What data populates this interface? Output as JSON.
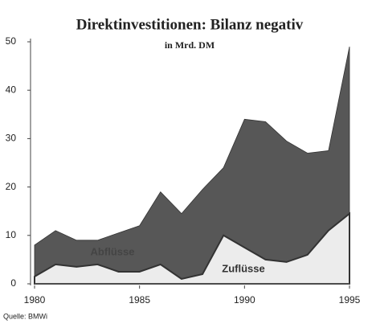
{
  "chart_data": {
    "type": "area",
    "title": "Direktinvestitionen: Bilanz negativ",
    "subtitle": "in Mrd. DM",
    "source": "Quelle: BMWi",
    "x": [
      1980,
      1981,
      1982,
      1983,
      1984,
      1985,
      1986,
      1987,
      1988,
      1989,
      1990,
      1991,
      1992,
      1993,
      1994,
      1995
    ],
    "series": [
      {
        "name": "Abflüsse",
        "color": "#575757",
        "values": [
          8,
          11,
          9,
          9,
          10.5,
          12,
          19,
          14.5,
          19.5,
          24,
          34,
          33.5,
          29.5,
          27,
          27.5,
          49
        ]
      },
      {
        "name": "Zuflüsse",
        "color": "#ececec",
        "values": [
          1.5,
          4,
          3.5,
          4,
          2.5,
          2.5,
          4,
          1,
          2,
          10,
          7.5,
          5,
          4.5,
          6,
          11,
          14.5
        ]
      }
    ],
    "xlim": [
      1980,
      1995
    ],
    "xticks": [
      1980,
      1985,
      1990,
      1995
    ],
    "ylim": [
      0,
      50
    ],
    "yticks": [
      0,
      10,
      20,
      30,
      40,
      50
    ]
  }
}
